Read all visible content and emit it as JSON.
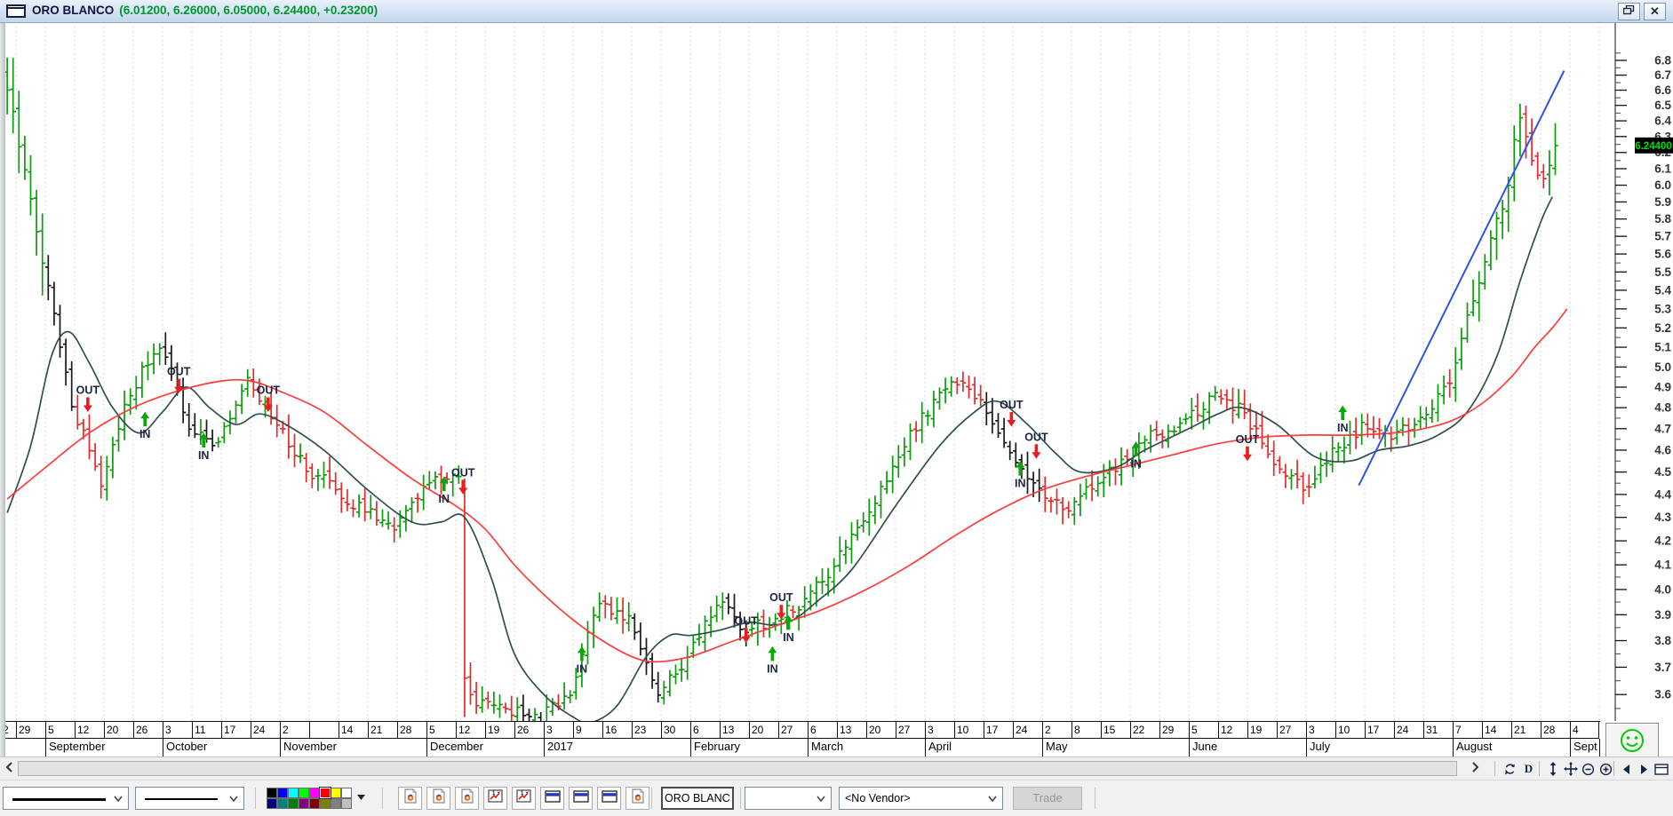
{
  "window": {
    "title": "ORO BLANCO",
    "title_values": "(6.01200, 6.26000, 6.05000, 6.24400, +0.23200)",
    "restore_glyph": "restore",
    "close_glyph": "close"
  },
  "chart_data": {
    "type": "ohlc",
    "symbol": "ORO BLANCO",
    "open": 6.012,
    "high": 6.26,
    "low": 6.05,
    "close": 6.244,
    "change": "+0.23200",
    "last_price_label": {
      "text": "6.24400",
      "bg": "#000000",
      "fg": "#00DD00"
    },
    "y_axis": {
      "scale": "log",
      "label_min": 3.6,
      "label_max": 6.8,
      "label_step": 0.1,
      "minor_step": 0.05,
      "side": "right"
    },
    "x_axis": {
      "tick_labels": [
        "2",
        "29",
        "5",
        "12",
        "20",
        "26",
        "3",
        "11",
        "17",
        "24",
        "2",
        "",
        "14",
        "21",
        "28",
        "5",
        "12",
        "19",
        "26",
        "3",
        "9",
        "16",
        "23",
        "30",
        "6",
        "13",
        "20",
        "27",
        "6",
        "13",
        "20",
        "27",
        "3",
        "10",
        "17",
        "24",
        "2",
        "8",
        "15",
        "22",
        "29",
        "5",
        "12",
        "19",
        "27",
        "3",
        "10",
        "17",
        "24",
        "31",
        "7",
        "14",
        "21",
        "28",
        "4"
      ],
      "months": [
        {
          "label": "September",
          "start": 2,
          "end": 6
        },
        {
          "label": "October",
          "start": 6,
          "end": 10
        },
        {
          "label": "November",
          "start": 10,
          "end": 15
        },
        {
          "label": "December",
          "start": 15,
          "end": 19
        },
        {
          "label": "2017",
          "start": 19,
          "end": 24
        },
        {
          "label": "February",
          "start": 24,
          "end": 28
        },
        {
          "label": "March",
          "start": 28,
          "end": 32
        },
        {
          "label": "April",
          "start": 32,
          "end": 36
        },
        {
          "label": "May",
          "start": 36,
          "end": 41
        },
        {
          "label": "June",
          "start": 41,
          "end": 45
        },
        {
          "label": "July",
          "start": 45,
          "end": 50
        },
        {
          "label": "August",
          "start": 50,
          "end": 54
        },
        {
          "label": "September",
          "start": 54,
          "end": 55
        }
      ]
    },
    "weekly_closes": [
      6.45,
      5.55,
      4.82,
      4.45,
      4.88,
      5.12,
      4.72,
      4.62,
      4.92,
      4.72,
      4.52,
      4.42,
      4.32,
      4.26,
      4.42,
      4.5,
      3.58,
      3.54,
      3.52,
      3.62,
      3.95,
      3.88,
      3.62,
      3.73,
      3.95,
      3.84,
      3.88,
      3.96,
      4.1,
      4.3,
      4.52,
      4.76,
      4.92,
      4.85,
      4.56,
      4.42,
      4.33,
      4.46,
      4.58,
      4.68,
      4.73,
      4.86,
      4.78,
      4.53,
      4.42,
      4.58,
      4.7,
      4.67,
      4.73,
      4.92,
      5.45,
      6.0,
      6.06,
      6.244
    ],
    "week_events": {
      "16": {
        "day_closes": [
          4.48,
          3.66,
          3.6,
          3.56,
          3.58
        ],
        "crash_day": 1,
        "crash_low": 3.52
      },
      "52": {
        "day_closes": [
          6.28,
          6.42,
          6.3,
          6.15,
          6.06
        ]
      },
      "53": {
        "day_closes": [
          6.04,
          6.12,
          6.244
        ]
      }
    },
    "black_weeks": [
      2,
      6,
      7,
      18,
      22,
      23,
      25,
      34,
      35
    ],
    "ma_fast": {
      "name": "moving-average-fast",
      "color": "#2F4F4F",
      "points": [
        [
          0.7,
          4.32
        ],
        [
          1.5,
          4.62
        ],
        [
          2.2,
          5.05
        ],
        [
          2.8,
          5.18
        ],
        [
          3.5,
          5.02
        ],
        [
          4.3,
          4.8
        ],
        [
          5.2,
          4.68
        ],
        [
          6.0,
          4.78
        ],
        [
          6.8,
          4.9
        ],
        [
          7.6,
          4.8
        ],
        [
          8.5,
          4.72
        ],
        [
          9.3,
          4.77
        ],
        [
          10.2,
          4.72
        ],
        [
          11.5,
          4.6
        ],
        [
          13,
          4.42
        ],
        [
          14.5,
          4.28
        ],
        [
          15.5,
          4.28
        ],
        [
          16.3,
          4.3
        ],
        [
          17.2,
          4.05
        ],
        [
          18,
          3.75
        ],
        [
          19,
          3.6
        ],
        [
          20,
          3.52
        ],
        [
          20.6,
          3.5
        ],
        [
          21.5,
          3.56
        ],
        [
          22.5,
          3.74
        ],
        [
          23.3,
          3.82
        ],
        [
          24,
          3.82
        ],
        [
          25,
          3.84
        ],
        [
          26,
          3.87
        ],
        [
          26.8,
          3.86
        ],
        [
          27.5,
          3.88
        ],
        [
          28.3,
          3.95
        ],
        [
          29.5,
          4.08
        ],
        [
          31,
          4.35
        ],
        [
          32.5,
          4.62
        ],
        [
          33.7,
          4.78
        ],
        [
          34.5,
          4.83
        ],
        [
          35.5,
          4.72
        ],
        [
          36.5,
          4.58
        ],
        [
          37.3,
          4.5
        ],
        [
          38.5,
          4.52
        ],
        [
          39.5,
          4.6
        ],
        [
          41,
          4.7
        ],
        [
          42,
          4.77
        ],
        [
          42.8,
          4.8
        ],
        [
          44,
          4.72
        ],
        [
          45.3,
          4.57
        ],
        [
          46.5,
          4.55
        ],
        [
          47.5,
          4.6
        ],
        [
          48.5,
          4.62
        ],
        [
          49.5,
          4.67
        ],
        [
          50.5,
          4.78
        ],
        [
          51.5,
          5.05
        ],
        [
          52.3,
          5.45
        ],
        [
          53.0,
          5.78
        ],
        [
          53.4,
          5.93
        ]
      ]
    },
    "ma_slow": {
      "name": "moving-average-slow",
      "color": "#FF3B3B",
      "points": [
        [
          0.7,
          4.38
        ],
        [
          2,
          4.52
        ],
        [
          3.5,
          4.68
        ],
        [
          5,
          4.8
        ],
        [
          6.5,
          4.88
        ],
        [
          8,
          4.93
        ],
        [
          9,
          4.93
        ],
        [
          10,
          4.88
        ],
        [
          11.5,
          4.78
        ],
        [
          13,
          4.62
        ],
        [
          14.5,
          4.47
        ],
        [
          16,
          4.35
        ],
        [
          17,
          4.25
        ],
        [
          18,
          4.1
        ],
        [
          19,
          3.98
        ],
        [
          20,
          3.88
        ],
        [
          21,
          3.8
        ],
        [
          22,
          3.74
        ],
        [
          22.8,
          3.72
        ],
        [
          24,
          3.74
        ],
        [
          25.5,
          3.8
        ],
        [
          27,
          3.86
        ],
        [
          28.5,
          3.92
        ],
        [
          30,
          4.0
        ],
        [
          31.5,
          4.1
        ],
        [
          33,
          4.22
        ],
        [
          34.5,
          4.33
        ],
        [
          36,
          4.42
        ],
        [
          37.5,
          4.48
        ],
        [
          39,
          4.53
        ],
        [
          40.5,
          4.58
        ],
        [
          42,
          4.63
        ],
        [
          43.5,
          4.66
        ],
        [
          45,
          4.67
        ],
        [
          46.5,
          4.67
        ],
        [
          48,
          4.68
        ],
        [
          49,
          4.7
        ],
        [
          50,
          4.74
        ],
        [
          51,
          4.82
        ],
        [
          52,
          4.95
        ],
        [
          52.8,
          5.1
        ],
        [
          53.4,
          5.2
        ],
        [
          53.9,
          5.3
        ]
      ]
    },
    "trendline": {
      "color": "#2E53E6",
      "from": [
        46.8,
        4.44
      ],
      "to": [
        53.8,
        6.73
      ]
    },
    "signals": [
      {
        "type": "OUT",
        "week": 3.45,
        "price": 4.79
      },
      {
        "type": "IN",
        "week": 5.4,
        "price": 4.77
      },
      {
        "type": "OUT",
        "week": 6.55,
        "price": 4.88
      },
      {
        "type": "IN",
        "week": 7.4,
        "price": 4.67
      },
      {
        "type": "OUT",
        "week": 9.6,
        "price": 4.79
      },
      {
        "type": "IN",
        "week": 15.6,
        "price": 4.47
      },
      {
        "type": "OUT",
        "week": 16.25,
        "price": 4.41
      },
      {
        "type": "IN",
        "week": 20.3,
        "price": 3.77
      },
      {
        "type": "OUT",
        "week": 25.9,
        "price": 3.8
      },
      {
        "type": "IN",
        "week": 26.8,
        "price": 3.77
      },
      {
        "type": "OUT",
        "week": 27.1,
        "price": 3.89
      },
      {
        "type": "IN",
        "week": 27.35,
        "price": 3.89
      },
      {
        "type": "OUT",
        "week": 34.95,
        "price": 4.72
      },
      {
        "type": "IN",
        "week": 35.25,
        "price": 4.54
      },
      {
        "type": "OUT",
        "week": 35.8,
        "price": 4.57
      },
      {
        "type": "IN",
        "week": 39.2,
        "price": 4.63
      },
      {
        "type": "OUT",
        "week": 43.0,
        "price": 4.56
      },
      {
        "type": "IN",
        "week": 46.25,
        "price": 4.8
      }
    ],
    "signal_labels": {
      "in": "IN",
      "out": "OUT"
    },
    "colors": {
      "up": "#0C9B0C",
      "down": "#E32B2B",
      "neutral": "#1a1a1a",
      "grid": "#c9c9c9",
      "axis_text": "#333333",
      "signal_text": "#1C2540"
    }
  },
  "scroll_row": {
    "left_arrow": "<",
    "right_arrow": ">",
    "periodicity_label": "D",
    "icons": [
      "refresh-icon",
      "periodicity-daily",
      "vertical-zoom-icon",
      "pan-icon",
      "zoom-out-icon",
      "zoom-in-icon",
      "page-left-icon",
      "page-right-icon",
      "panel-icon"
    ]
  },
  "toolbar": {
    "symbol_value": "ORO BLANC",
    "vendor_value": "<No Vendor>",
    "trade_label": "Trade",
    "palette_row1": [
      "#000000",
      "#0000FF",
      "#00FFFF",
      "#00FF00",
      "#FF00FF",
      "#FF0000",
      "#FFFF00",
      "#FFFFFF"
    ],
    "palette_row2": [
      "#000080",
      "#008080",
      "#008000",
      "#800080",
      "#800000",
      "#808000",
      "#808080",
      "#C0C0C0"
    ],
    "selected_color": "#FF0000",
    "button_icons": [
      "chart-doc-icon",
      "chart-doc-icon",
      "chart-doc-icon",
      "export-chart-icon",
      "export-chart-icon",
      "layout-band-icon",
      "layout-band-icon",
      "layout-band-icon",
      "chart-doc-icon"
    ]
  },
  "smiley": {
    "color": "#00CC00"
  }
}
